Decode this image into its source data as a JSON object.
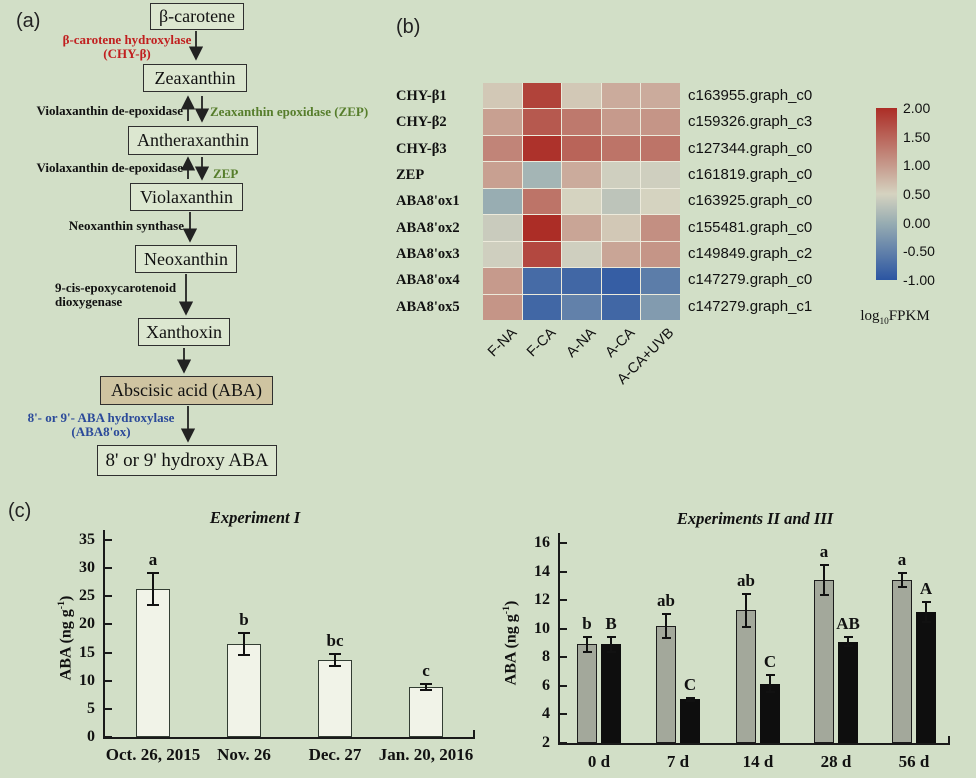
{
  "page": {
    "bg": "#d2dfc7"
  },
  "panel_labels": {
    "a": "(a)",
    "b": "(b)",
    "c": "(c)"
  },
  "pathway": {
    "nodes": [
      {
        "label": "β-carotene"
      },
      {
        "label": "Zeaxanthin"
      },
      {
        "label": "Antheraxanthin"
      },
      {
        "label": "Violaxanthin"
      },
      {
        "label": "Neoxanthin"
      },
      {
        "label": "Xanthoxin"
      },
      {
        "label": "Abscisic acid (ABA)"
      },
      {
        "label": "8' or 9' hydroxy ABA"
      }
    ],
    "enzymes": {
      "chyb_line1": "β-carotene hydroxylase",
      "chyb_line2": "(CHY-β)",
      "vde1": "Violaxanthin de-epoxidase",
      "zep1": "Zeaxanthin epoxidase (ZEP)",
      "vde2": "Violaxanthin de-epoxidase",
      "zep2": "ZEP",
      "neoxanthin_synthase": "Neoxanthin synthase",
      "nced_line1": "9-cis-epoxycarotenoid",
      "nced_line2": "dioxygenase",
      "aba8ox_line1": "8'- or 9'- ABA hydroxylase",
      "aba8ox_line2": "(ABA8'ox)"
    },
    "colors": {
      "enzyme_red": "#c11f1f",
      "enzyme_green": "#567d2b",
      "enzyme_blue": "#2b4a9a",
      "box_fill": "#dce7d0",
      "aba_box_fill": "#cfc4a1",
      "box_border": "#2f2f2f"
    }
  },
  "chart_data": [
    {
      "type": "heatmap",
      "rows": [
        "CHY-β1",
        "CHY-β2",
        "CHY-β3",
        "ZEP",
        "ABA8'ox1",
        "ABA8'ox2",
        "ABA8'ox3",
        "ABA8'ox4",
        "ABA8'ox5"
      ],
      "row_ids": [
        "c163955.graph_c0",
        "c159326.graph_c3",
        "c127344.graph_c0",
        "c161819.graph_c0",
        "c163925.graph_c0",
        "c155481.graph_c0",
        "c149849.graph_c2",
        "c147279.graph_c0",
        "c147279.graph_c1"
      ],
      "columns": [
        "F-NA",
        "F-CA",
        "A-NA",
        "A-CA",
        "A-CA+UVB"
      ],
      "values": [
        [
          0.6,
          1.8,
          0.6,
          0.85,
          0.85
        ],
        [
          0.95,
          1.6,
          1.3,
          1.0,
          1.05
        ],
        [
          1.2,
          1.95,
          1.5,
          1.35,
          1.35
        ],
        [
          0.95,
          0.1,
          0.85,
          0.45,
          0.45
        ],
        [
          0.0,
          1.35,
          0.5,
          0.3,
          0.5
        ],
        [
          0.4,
          2.0,
          0.9,
          0.6,
          1.1
        ],
        [
          0.45,
          1.75,
          0.45,
          0.9,
          1.05
        ],
        [
          1.0,
          -0.75,
          -0.8,
          -0.9,
          -0.55
        ],
        [
          1.05,
          -0.8,
          -0.5,
          -0.8,
          -0.2
        ]
      ],
      "scale": {
        "min": -1,
        "max": 2,
        "tick_labels": [
          "2.00",
          "1.50",
          "1.00",
          "0.50",
          "0.00",
          "-0.50",
          "-1.00"
        ],
        "label_pre": "log",
        "label_sub": "10",
        "label_post": "FPKM",
        "stops": [
          [
            -1.0,
            "#2b55a2"
          ],
          [
            0.0,
            "#98adb2"
          ],
          [
            0.5,
            "#d5d3c0"
          ],
          [
            1.0,
            "#c69a8c"
          ],
          [
            2.0,
            "#ac2d26"
          ]
        ]
      }
    },
    {
      "type": "bar",
      "title": "Experiment I",
      "ylabel": {
        "pre": "ABA  (ng g",
        "sup": "-1",
        "post": ")"
      },
      "ylim": [
        0,
        35
      ],
      "yticks": [
        35,
        30,
        25,
        20,
        15,
        10,
        5,
        0
      ],
      "categories": [
        "Oct. 26, 2015",
        "Nov. 26",
        "Dec. 27",
        "Jan. 20, 2016"
      ],
      "values": [
        26.3,
        16.5,
        13.7,
        8.9
      ],
      "errors": [
        2.8,
        2.0,
        1.0,
        0.5
      ],
      "letters": [
        "a",
        "b",
        "bc",
        "c"
      ],
      "bar_fill": "#f1f3e8",
      "bar_border": "#333d33"
    },
    {
      "type": "bar",
      "title": "Experiments II and III",
      "ylabel": {
        "pre": "ABA  (ng g",
        "sup": "-1",
        "post": ")"
      },
      "ylim": [
        2,
        16
      ],
      "yticks": [
        16,
        14,
        12,
        10,
        8,
        6,
        4,
        2
      ],
      "categories": [
        "0 d",
        "7 d",
        "14 d",
        "28 d",
        "56 d"
      ],
      "series": [
        {
          "fill": "#a3a89b",
          "border": "#1c1c1c",
          "values": [
            8.9,
            10.2,
            11.3,
            13.4,
            13.4
          ],
          "errors": [
            0.5,
            0.85,
            1.15,
            1.05,
            0.5
          ],
          "letters": [
            "b",
            "ab",
            "ab",
            "a",
            "a"
          ]
        },
        {
          "fill": "#0e0e0e",
          "border": null,
          "values": [
            8.9,
            5.05,
            6.15,
            9.1,
            11.15
          ],
          "errors": [
            0.5,
            0.12,
            0.6,
            0.3,
            0.7
          ],
          "letters": [
            "B",
            "C",
            "C",
            "AB",
            "A"
          ]
        }
      ]
    }
  ]
}
